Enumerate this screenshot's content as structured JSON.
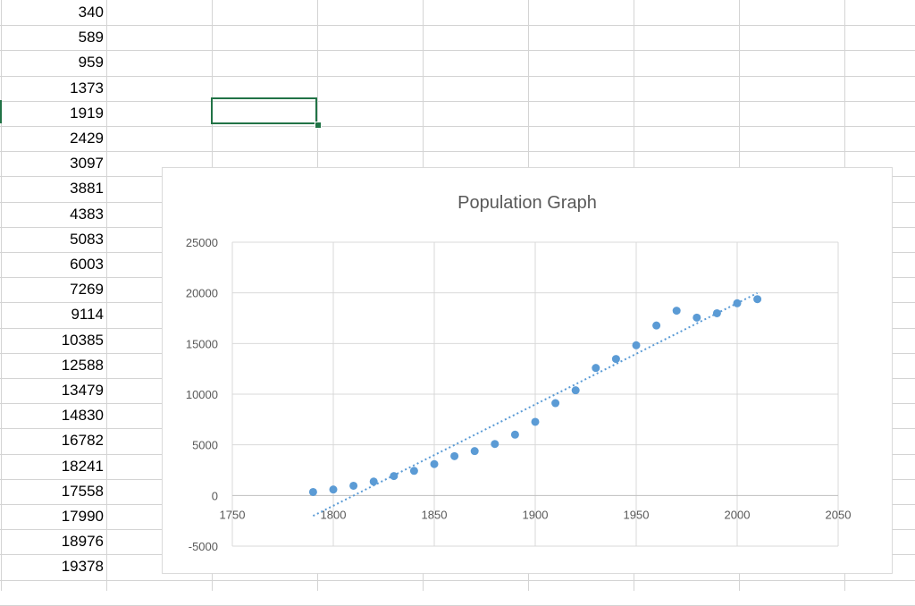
{
  "sheet": {
    "column_values": [
      "340",
      "589",
      "959",
      "1373",
      "1919",
      "2429",
      "3097",
      "3881",
      "4383",
      "5083",
      "6003",
      "7269",
      "9114",
      "10385",
      "12588",
      "13479",
      "14830",
      "16782",
      "18241",
      "17558",
      "17990",
      "18976",
      "19378"
    ]
  },
  "colors": {
    "accent": "#217346",
    "gridline": "#d4d4d4",
    "point": "#5b9bd5",
    "trendline": "#5b9bd5",
    "axis_text": "#595959"
  },
  "chart_data": {
    "type": "scatter",
    "title": "Population Graph",
    "xlabel": "",
    "ylabel": "",
    "xlim": [
      1750,
      2050
    ],
    "ylim": [
      -5000,
      25000
    ],
    "x_ticks": [
      "1750",
      "1800",
      "1850",
      "1900",
      "1950",
      "2000",
      "2050"
    ],
    "y_ticks": [
      "25000",
      "20000",
      "15000",
      "10000",
      "5000",
      "0",
      "-5000"
    ],
    "grid": true,
    "legend": "none",
    "trendline": {
      "type": "linear",
      "style": "dotted",
      "x_start": 1790,
      "x_end": 2010
    },
    "series": [
      {
        "x": [
          1790,
          1800,
          1810,
          1820,
          1830,
          1840,
          1850,
          1860,
          1870,
          1880,
          1890,
          1900,
          1910,
          1920,
          1930,
          1940,
          1950,
          1960,
          1970,
          1980,
          1990,
          2000,
          2010
        ],
        "y": [
          340,
          589,
          959,
          1373,
          1919,
          2429,
          3097,
          3881,
          4383,
          5083,
          6003,
          7269,
          9114,
          10385,
          12588,
          13479,
          14830,
          16782,
          18241,
          17558,
          17990,
          18976,
          19378
        ]
      }
    ]
  }
}
